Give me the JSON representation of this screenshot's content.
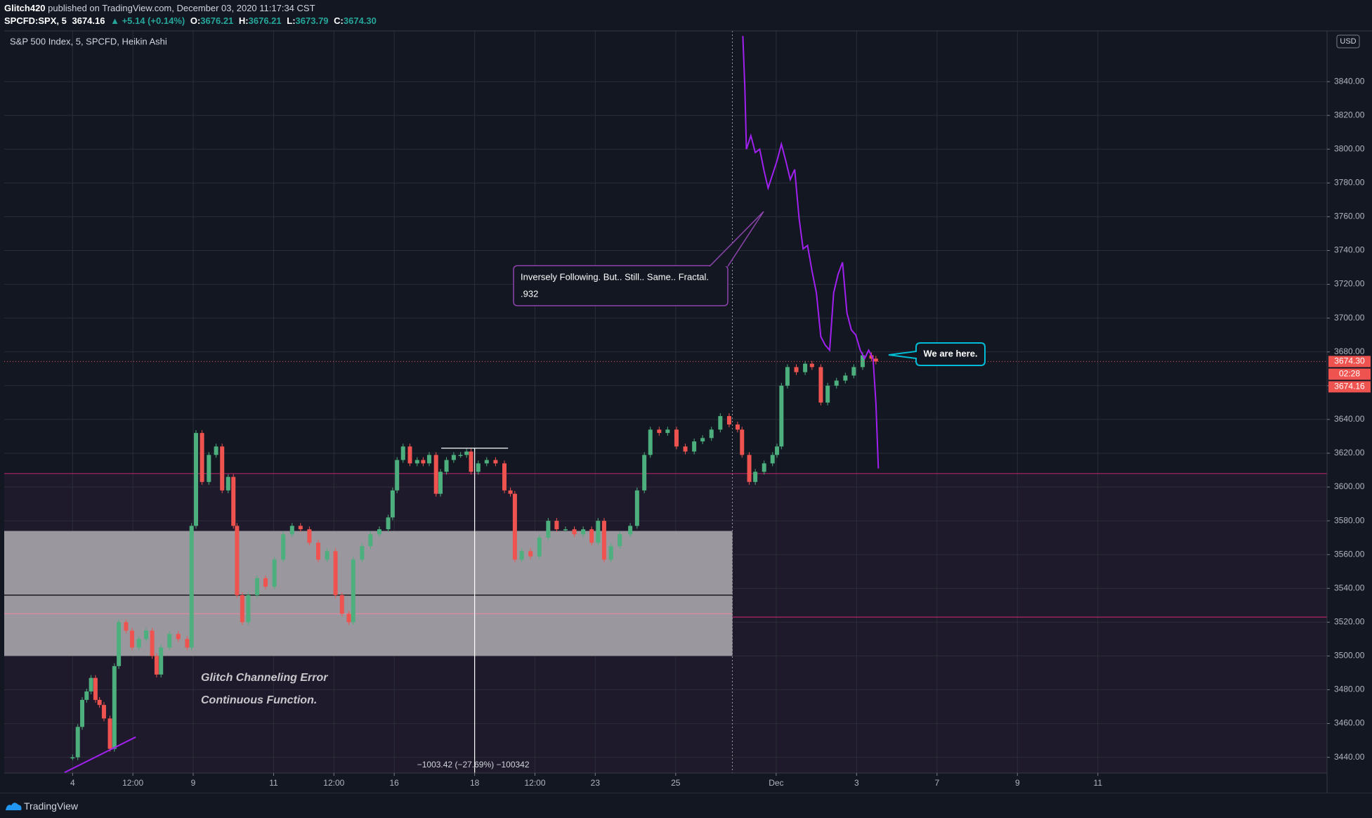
{
  "header": {
    "publisher": "Glitch420",
    "published": "published on TradingView.com, December 03, 2020 11:17:34 CST",
    "symbol": "SPCFD:SPX, 5",
    "last": "3674.16",
    "change": "▲ +5.14 (+0.14%)",
    "ohlc": [
      [
        "O:",
        "3676.21"
      ],
      [
        "H:",
        "3676.21"
      ],
      [
        "L:",
        "3673.79"
      ],
      [
        "C:",
        "3674.30"
      ]
    ]
  },
  "footer": {
    "brand": "TradingView"
  },
  "chart_data": {
    "type": "candlestick",
    "title": "S&P 500 Index, 5, SPCFD, Heikin Ashi",
    "currency": "USD",
    "x": [
      0,
      0.13,
      0.24,
      0.35,
      0.46,
      0.57,
      0.67,
      0.78,
      0.93,
      1.04,
      1.15,
      1.33,
      1.48,
      1.65,
      1.83,
      1.98,
      2.09,
      2.2,
      2.41,
      2.63,
      2.85,
      2.96,
      3.07,
      3.22,
      3.39,
      3.57,
      3.72,
      3.87,
      4,
      4.09,
      4.22,
      4.37,
      4.59,
      4.8,
      5.02,
      5.24,
      5.46,
      5.67,
      5.89,
      6.11,
      6.33,
      6.54,
      6.7,
      6.87,
      6.98,
      7.2,
      7.41,
      7.63,
      7.85,
      7.96,
      8.07,
      8.22,
      8.39,
      8.57,
      8.72,
      8.87,
      9.04,
      9.15,
      9.3,
      9.48,
      9.65,
      9.8,
      9.91,
      10.09,
      10.3,
      10.52,
      10.74,
      10.89,
      11,
      11.17,
      11.39,
      11.61,
      11.83,
      12.04,
      12.26,
      12.48,
      12.7,
      12.91,
      13.07,
      13.22,
      13.39,
      13.61,
      13.87,
      14.04,
      14.22,
      14.37,
      14.59,
      14.8,
      15.02,
      15.24,
      15.46,
      15.67,
      15.89,
      16.11,
      16.33,
      16.54,
      16.65,
      16.83,
      16.98,
      17.2,
      17.41,
      17.52,
      17.63,
      17.78,
      18,
      18.22,
      18.39,
      18.61,
      18.78,
      19,
      19.22,
      19.43,
      19.65,
      19.87,
      19.98
    ],
    "series": [
      {
        "values": [
          3440,
          3458,
          3474,
          3479,
          3487,
          3474,
          3471,
          3463,
          3445,
          3494,
          3520,
          3515,
          3505,
          3510,
          3515,
          3500,
          3489,
          3505,
          3513,
          3510,
          3505,
          3577,
          3632,
          3603,
          3619,
          3624,
          3598,
          3606,
          3577,
          3536,
          3520,
          3536,
          3546,
          3541,
          3557,
          3572,
          3577,
          3575,
          3567,
          3557,
          3562,
          3536,
          3525,
          3520,
          3557,
          3565,
          3572,
          3575,
          3582,
          3598,
          3616,
          3624,
          3614,
          3616,
          3614,
          3619,
          3596,
          3609,
          3616,
          3619,
          3619,
          3621,
          3609,
          3614,
          3616,
          3614,
          3598,
          3596,
          3557,
          3562,
          3559,
          3570,
          3580,
          3575,
          3575,
          3572,
          3575,
          3567,
          3580,
          3557,
          3565,
          3572,
          3577,
          3598,
          3619,
          3634,
          3632,
          3634,
          3624,
          3621,
          3627,
          3629,
          3634,
          3642,
          3637,
          3634,
          3619,
          3603,
          3609,
          3614,
          3619,
          3624,
          3660,
          3671,
          3668,
          3673,
          3671,
          3650,
          3660,
          3663,
          3666,
          3671,
          3678,
          3676,
          3674.3
        ],
        "up_color": "#4caf7d",
        "down_color": "#ef5350"
      }
    ],
    "overlay": {
      "type": "line",
      "color": "#a020f0",
      "x": [
        16.67,
        16.72,
        16.76,
        16.87,
        16.98,
        17.09,
        17.2,
        17.3,
        17.41,
        17.52,
        17.63,
        17.74,
        17.85,
        17.96,
        18.07,
        18.17,
        18.28,
        18.39,
        18.5,
        18.61,
        18.72,
        18.83,
        18.93,
        19.04,
        19.15,
        19.26,
        19.37,
        19.48,
        19.59,
        19.7,
        19.8,
        19.91,
        19.98,
        20.04
      ],
      "values": [
        3867,
        3836,
        3800,
        3808,
        3798,
        3800,
        3787,
        3777,
        3785,
        3793,
        3803,
        3793,
        3782,
        3788,
        3759,
        3741,
        3743,
        3728,
        3715,
        3689,
        3684,
        3681,
        3715,
        3726,
        3733,
        3703,
        3693,
        3690,
        3681,
        3676,
        3681,
        3676,
        3650,
        3611
      ]
    },
    "xlim": [
      -1.7,
      31.2
    ],
    "xticks": [
      {
        "value": 0,
        "label": "4"
      },
      {
        "value": 1.5,
        "label": "12:00"
      },
      {
        "value": 3,
        "label": "9"
      },
      {
        "value": 5,
        "label": "11"
      },
      {
        "value": 6.5,
        "label": "12:00"
      },
      {
        "value": 8,
        "label": "16"
      },
      {
        "value": 10,
        "label": "18"
      },
      {
        "value": 11.5,
        "label": "12:00"
      },
      {
        "value": 13,
        "label": "23"
      },
      {
        "value": 15,
        "label": "25"
      },
      {
        "value": 17.5,
        "label": "Dec"
      },
      {
        "value": 19.5,
        "label": "3"
      },
      {
        "value": 21.5,
        "label": "7"
      },
      {
        "value": 23.5,
        "label": "9"
      },
      {
        "value": 25.5,
        "label": "11"
      }
    ],
    "ylim": [
      3430.7,
      3870
    ],
    "yticks": [
      {
        "value": 3440,
        "label": "3440.00"
      },
      {
        "value": 3460,
        "label": "3460.00"
      },
      {
        "value": 3480,
        "label": "3480.00"
      },
      {
        "value": 3500,
        "label": "3500.00"
      },
      {
        "value": 3520,
        "label": "3520.00"
      },
      {
        "value": 3540,
        "label": "3540.00"
      },
      {
        "value": 3560,
        "label": "3560.00"
      },
      {
        "value": 3580,
        "label": "3580.00"
      },
      {
        "value": 3600,
        "label": "3600.00"
      },
      {
        "value": 3620,
        "label": "3620.00"
      },
      {
        "value": 3640,
        "label": "3640.00"
      },
      {
        "value": 3660,
        "label": "3660.00"
      },
      {
        "value": 3680,
        "label": "3680.00"
      },
      {
        "value": 3700,
        "label": "3700.00"
      },
      {
        "value": 3720,
        "label": "3720.00"
      },
      {
        "value": 3740,
        "label": "3740.00"
      },
      {
        "value": 3760,
        "label": "3760.00"
      },
      {
        "value": 3780,
        "label": "3780.00"
      },
      {
        "value": 3800,
        "label": "3800.00"
      },
      {
        "value": 3820,
        "label": "3820.00"
      },
      {
        "value": 3840,
        "label": "3840.00"
      }
    ],
    "grid": true,
    "price_labels": [
      "3674.30",
      "02:28",
      "3674.16"
    ],
    "shade": {
      "to": 3608,
      "color": "#1f1a2b"
    },
    "zone": {
      "from": 3500,
      "to": 3574,
      "x0": -1.7,
      "x1": 16.41,
      "color": "#9b979f"
    },
    "levels": [
      {
        "value": 3608,
        "x0": -1.7,
        "x1": 31.2,
        "color": "#b0246a"
      },
      {
        "value": 3523,
        "x0": 16.41,
        "x1": 31.2,
        "color": "#b0246a"
      },
      {
        "value": 3525,
        "x0": -1.7,
        "x1": 16.41,
        "color": "#e08aa0"
      },
      {
        "value": 3536,
        "x0": -1.7,
        "x1": 16.41,
        "color": "#000000"
      }
    ],
    "session_break": 16.41,
    "trendline": {
      "x0": -0.2,
      "y0": 3431,
      "x1": 1.57,
      "y1": 3452,
      "color": "#a020f0"
    },
    "measure": {
      "x": 10,
      "top": 3623,
      "x0": 9.17,
      "x1": 10.83,
      "label": "−1003.42 (−27.69%) −100342"
    },
    "annotations": {
      "glitch": "Glitch Channeling Error",
      "continuous": "Continuous Function.",
      "fractal": "Inversely Following. But.. Still.. Same.. Fractal.",
      "fractal_ratio": ".932",
      "here": "We are here."
    }
  }
}
